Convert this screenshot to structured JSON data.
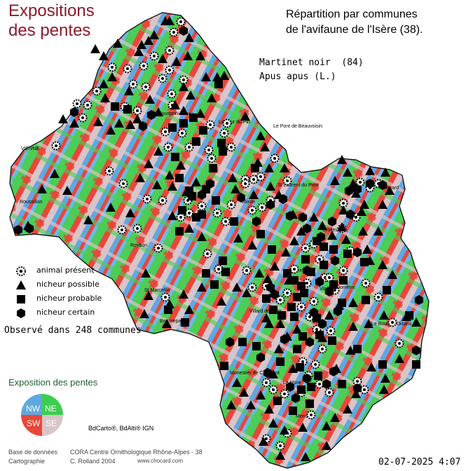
{
  "header": {
    "title_line1": "Exposition",
    "title_line1_s": "s",
    "title_line2": "des pentes",
    "heading_line1": "Répartition par communes",
    "heading_line2": "de l'avifaune de l'Isère (38)."
  },
  "species": {
    "common_name": "Martinet noir  (84)",
    "latin_name": "Apus apus (L.)"
  },
  "legend": {
    "items": [
      {
        "symbol": "dotted-circle",
        "label": "animal présent"
      },
      {
        "symbol": "triangle",
        "label": "nicheur possible"
      },
      {
        "symbol": "square",
        "label": "nicheur probable"
      },
      {
        "symbol": "hexagon",
        "label": "nicheur certain"
      }
    ]
  },
  "observed": "Observé dans 248 communes",
  "slope_legend": {
    "title": "Exposition des pentes",
    "quadrants": [
      {
        "label": "NW",
        "color": "#5fa8e0"
      },
      {
        "label": "NE",
        "color": "#3ccf4f"
      },
      {
        "label": "SW",
        "color": "#e8473a"
      },
      {
        "label": "SE",
        "color": "#d9c5c9"
      }
    ]
  },
  "credits": {
    "sources": "BdCarto®, BdAlti® IGN",
    "database_label": "Base de données",
    "database_value": "CORA Centre Ornithologique Rhône-Alpes - 38",
    "cartography_label": "Cartographie",
    "cartography_value": "C. Rolland 2004",
    "website": "www.chocard.com"
  },
  "date": "02-07-2025 4:07",
  "towns": [
    "VIENNE",
    "Le Pont de Beauvoisin",
    "Bourgoin-Jallieu",
    "St Marcellin",
    "Grenoble",
    "Vizille",
    "Voiron",
    "Roussillon",
    "La Mure",
    "Vif",
    "Le Bourg d'Oisans",
    "Allevard",
    "Crolles",
    "La Tour du Pin",
    "Monestier de Clermont",
    "Mens",
    "Villard de Lans",
    "St Laurent du Pont",
    "Roybon",
    "Beaurepaire",
    "Domène"
  ],
  "map_symbols": {
    "present": [
      [
        110,
        148
      ],
      [
        125,
        150
      ],
      [
        258,
        31
      ],
      [
        248,
        46
      ],
      [
        242,
        72
      ],
      [
        220,
        80
      ],
      [
        242,
        100
      ],
      [
        262,
        114
      ],
      [
        245,
        134
      ],
      [
        246,
        150
      ],
      [
        205,
        94
      ],
      [
        232,
        112
      ],
      [
        208,
        124
      ],
      [
        178,
        152
      ],
      [
        196,
        158
      ],
      [
        160,
        96
      ],
      [
        182,
        98
      ],
      [
        190,
        120
      ],
      [
        138,
        130
      ],
      [
        236,
        188
      ],
      [
        240,
        210
      ],
      [
        260,
        190
      ],
      [
        270,
        210
      ],
      [
        298,
        214
      ],
      [
        302,
        226
      ],
      [
        330,
        210
      ],
      [
        320,
        190
      ],
      [
        300,
        178
      ],
      [
        324,
        176
      ],
      [
        350,
        256
      ],
      [
        372,
        252
      ],
      [
        410,
        258
      ],
      [
        392,
        226
      ],
      [
        156,
        244
      ],
      [
        176,
        262
      ],
      [
        210,
        284
      ],
      [
        232,
        286
      ],
      [
        268,
        286
      ],
      [
        270,
        304
      ],
      [
        288,
        294
      ],
      [
        258,
        310
      ],
      [
        310,
        304
      ],
      [
        322,
        316
      ],
      [
        330,
        292
      ],
      [
        350,
        262
      ],
      [
        374,
        296
      ],
      [
        386,
        286
      ],
      [
        360,
        300
      ],
      [
        296,
        362
      ],
      [
        312,
        384
      ],
      [
        174,
        328
      ],
      [
        196,
        326
      ],
      [
        226,
        354
      ],
      [
        80,
        208
      ],
      [
        118,
        168
      ],
      [
        236,
        424
      ],
      [
        352,
        386
      ],
      [
        360,
        410
      ],
      [
        380,
        408
      ],
      [
        420,
        384
      ],
      [
        436,
        354
      ],
      [
        448,
        348
      ],
      [
        456,
        370
      ],
      [
        464,
        396
      ],
      [
        478,
        414
      ],
      [
        490,
        386
      ],
      [
        500,
        358
      ],
      [
        438,
        404
      ],
      [
        410,
        418
      ],
      [
        400,
        428
      ],
      [
        430,
        438
      ],
      [
        448,
        430
      ],
      [
        442,
        452
      ],
      [
        452,
        470
      ],
      [
        472,
        472
      ],
      [
        460,
        498
      ],
      [
        450,
        520
      ],
      [
        432,
        516
      ],
      [
        440,
        536
      ],
      [
        380,
        546
      ],
      [
        390,
        556
      ],
      [
        406,
        562
      ],
      [
        430,
        560
      ],
      [
        456,
        548
      ],
      [
        470,
        560
      ],
      [
        510,
        544
      ],
      [
        520,
        556
      ],
      [
        540,
        262
      ],
      [
        528,
        268
      ],
      [
        514,
        260
      ],
      [
        490,
        290
      ],
      [
        488,
        326
      ],
      [
        508,
        310
      ],
      [
        522,
        404
      ],
      [
        540,
        424
      ],
      [
        560,
        460
      ],
      [
        570,
        490
      ],
      [
        444,
        592
      ],
      [
        410,
        618
      ],
      [
        380,
        626
      ],
      [
        400,
        636
      ],
      [
        470,
        396
      ],
      [
        362,
        256
      ]
    ],
    "triangle": [
      [
        236,
        30
      ],
      [
        220,
        50
      ],
      [
        242,
        30
      ],
      [
        270,
        54
      ],
      [
        168,
        62
      ],
      [
        136,
        70
      ],
      [
        148,
        80
      ],
      [
        198,
        74
      ],
      [
        202,
        64
      ],
      [
        212,
        58
      ],
      [
        232,
        84
      ],
      [
        252,
        88
      ],
      [
        268,
        80
      ],
      [
        286,
        80
      ],
      [
        294,
        110
      ],
      [
        310,
        110
      ],
      [
        320,
        108
      ],
      [
        262,
        124
      ],
      [
        214,
        142
      ],
      [
        226,
        160
      ],
      [
        196,
        170
      ],
      [
        160,
        110
      ],
      [
        148,
        120
      ],
      [
        150,
        140
      ],
      [
        184,
        130
      ],
      [
        90,
        170
      ],
      [
        106,
        176
      ],
      [
        140,
        174
      ],
      [
        158,
        186
      ],
      [
        170,
        176
      ],
      [
        186,
        178
      ],
      [
        250,
        150
      ],
      [
        262,
        158
      ],
      [
        272,
        136
      ],
      [
        302,
        140
      ],
      [
        286,
        162
      ],
      [
        350,
        166
      ],
      [
        372,
        194
      ],
      [
        378,
        210
      ],
      [
        368,
        232
      ],
      [
        384,
        240
      ],
      [
        406,
        240
      ],
      [
        386,
        266
      ],
      [
        336,
        270
      ],
      [
        332,
        254
      ],
      [
        362,
        278
      ],
      [
        398,
        278
      ],
      [
        418,
        306
      ],
      [
        448,
        310
      ],
      [
        460,
        322
      ],
      [
        474,
        336
      ],
      [
        488,
        324
      ],
      [
        494,
        342
      ],
      [
        516,
        302
      ],
      [
        540,
        330
      ],
      [
        518,
        330
      ],
      [
        524,
        356
      ],
      [
        528,
        372
      ],
      [
        546,
        378
      ],
      [
        560,
        392
      ],
      [
        488,
        228
      ],
      [
        496,
        246
      ],
      [
        478,
        258
      ],
      [
        504,
        262
      ],
      [
        528,
        244
      ],
      [
        550,
        246
      ],
      [
        556,
        272
      ],
      [
        546,
        292
      ],
      [
        520,
        292
      ],
      [
        508,
        276
      ],
      [
        490,
        300
      ],
      [
        430,
        330
      ],
      [
        420,
        344
      ],
      [
        408,
        360
      ],
      [
        392,
        380
      ],
      [
        382,
        398
      ],
      [
        370,
        390
      ],
      [
        352,
        418
      ],
      [
        338,
        410
      ],
      [
        316,
        430
      ],
      [
        288,
        410
      ],
      [
        262,
        420
      ],
      [
        270,
        442
      ],
      [
        238,
        462
      ],
      [
        242,
        434
      ],
      [
        206,
        448
      ],
      [
        212,
        422
      ],
      [
        208,
        390
      ],
      [
        186,
        304
      ],
      [
        158,
        296
      ],
      [
        126,
        314
      ],
      [
        96,
        272
      ],
      [
        78,
        248
      ],
      [
        60,
        270
      ],
      [
        40,
        322
      ],
      [
        224,
        264
      ],
      [
        242,
        250
      ],
      [
        246,
        266
      ],
      [
        266,
        274
      ],
      [
        280,
        260
      ],
      [
        258,
        236
      ],
      [
        226,
        216
      ],
      [
        212,
        234
      ],
      [
        200,
        254
      ],
      [
        246,
        308
      ],
      [
        270,
        326
      ],
      [
        288,
        338
      ],
      [
        340,
        340
      ],
      [
        360,
        350
      ],
      [
        470,
        450
      ],
      [
        484,
        436
      ],
      [
        504,
        432
      ],
      [
        504,
        466
      ],
      [
        526,
        462
      ],
      [
        548,
        450
      ],
      [
        580,
        452
      ],
      [
        594,
        460
      ],
      [
        570,
        512
      ],
      [
        500,
        500
      ],
      [
        480,
        526
      ],
      [
        530,
        524
      ],
      [
        550,
        540
      ],
      [
        548,
        556
      ],
      [
        508,
        562
      ],
      [
        496,
        584
      ],
      [
        478,
        596
      ],
      [
        466,
        608
      ],
      [
        432,
        610
      ],
      [
        406,
        614
      ],
      [
        390,
        604
      ],
      [
        376,
        630
      ],
      [
        400,
        650
      ],
      [
        436,
        652
      ],
      [
        466,
        636
      ],
      [
        384,
        584
      ],
      [
        358,
        578
      ],
      [
        372,
        564
      ],
      [
        348,
        560
      ],
      [
        330,
        578
      ],
      [
        338,
        546
      ],
      [
        390,
        534
      ],
      [
        418,
        526
      ],
      [
        460,
        482
      ],
      [
        424,
        470
      ],
      [
        410,
        480
      ],
      [
        398,
        498
      ],
      [
        400,
        462
      ],
      [
        384,
        462
      ],
      [
        380,
        454
      ],
      [
        412,
        400
      ]
    ],
    "square": [
      [
        246,
        182
      ],
      [
        250,
        224
      ],
      [
        256,
        254
      ],
      [
        274,
        280
      ],
      [
        294,
        270
      ],
      [
        308,
        286
      ],
      [
        270,
        272
      ],
      [
        260,
        300
      ],
      [
        280,
        310
      ],
      [
        256,
        330
      ],
      [
        288,
        306
      ],
      [
        334,
        316
      ],
      [
        304,
        240
      ],
      [
        318,
        216
      ],
      [
        316,
        204
      ],
      [
        280,
        202
      ],
      [
        290,
        186
      ],
      [
        276,
        168
      ],
      [
        262,
        176
      ],
      [
        312,
        120
      ],
      [
        164,
        152
      ],
      [
        182,
        156
      ],
      [
        364,
        240
      ],
      [
        372,
        334
      ],
      [
        388,
        356
      ],
      [
        410,
        390
      ],
      [
        420,
        400
      ],
      [
        430,
        408
      ],
      [
        434,
        418
      ],
      [
        424,
        424
      ],
      [
        416,
        438
      ],
      [
        390,
        442
      ],
      [
        380,
        426
      ],
      [
        402,
        450
      ],
      [
        420,
        452
      ],
      [
        452,
        454
      ],
      [
        456,
        478
      ],
      [
        474,
        486
      ],
      [
        432,
        480
      ],
      [
        424,
        498
      ],
      [
        428,
        524
      ],
      [
        454,
        536
      ],
      [
        444,
        552
      ],
      [
        430,
        556
      ],
      [
        442,
        576
      ],
      [
        418,
        586
      ],
      [
        396,
        572
      ],
      [
        400,
        516
      ],
      [
        366,
        494
      ],
      [
        318,
        372
      ],
      [
        322,
        388
      ],
      [
        306,
        406
      ],
      [
        444,
        388
      ],
      [
        462,
        378
      ],
      [
        436,
        370
      ],
      [
        452,
        344
      ],
      [
        462,
        352
      ],
      [
        476,
        356
      ],
      [
        490,
        400
      ],
      [
        476,
        406
      ],
      [
        488,
        432
      ],
      [
        496,
        362
      ],
      [
        520,
        374
      ],
      [
        522,
        428
      ],
      [
        552,
        414
      ],
      [
        584,
        450
      ],
      [
        594,
        520
      ],
      [
        510,
        498
      ],
      [
        488,
        548
      ],
      [
        546,
        520
      ],
      [
        264,
        460
      ],
      [
        294,
        390
      ],
      [
        240,
        442
      ],
      [
        320,
        522
      ],
      [
        346,
        488
      ]
    ],
    "hexagon": [
      [
        262,
        44
      ],
      [
        216,
        164
      ],
      [
        204,
        180
      ],
      [
        106,
        160
      ],
      [
        42,
        326
      ],
      [
        26,
        328
      ],
      [
        288,
        278
      ],
      [
        300,
        262
      ],
      [
        344,
        282
      ],
      [
        366,
        316
      ],
      [
        386,
        292
      ],
      [
        414,
        308
      ],
      [
        404,
        284
      ],
      [
        432,
        310
      ],
      [
        438,
        326
      ],
      [
        458,
        338
      ],
      [
        474,
        316
      ],
      [
        498,
        272
      ],
      [
        510,
        270
      ],
      [
        528,
        262
      ],
      [
        546,
        264
      ],
      [
        500,
        306
      ],
      [
        510,
        360
      ],
      [
        478,
        372
      ],
      [
        386,
        410
      ],
      [
        392,
        420
      ],
      [
        438,
        386
      ],
      [
        456,
        402
      ],
      [
        470,
        416
      ],
      [
        482,
        444
      ],
      [
        448,
        446
      ],
      [
        460,
        462
      ],
      [
        442,
        488
      ],
      [
        406,
        484
      ],
      [
        372,
        510
      ],
      [
        328,
        488
      ],
      [
        382,
        532
      ],
      [
        438,
        540
      ],
      [
        466,
        548
      ],
      [
        476,
        530
      ],
      [
        510,
        554
      ],
      [
        598,
        428
      ],
      [
        594,
        500
      ],
      [
        414,
        552
      ],
      [
        422,
        568
      ]
    ]
  }
}
